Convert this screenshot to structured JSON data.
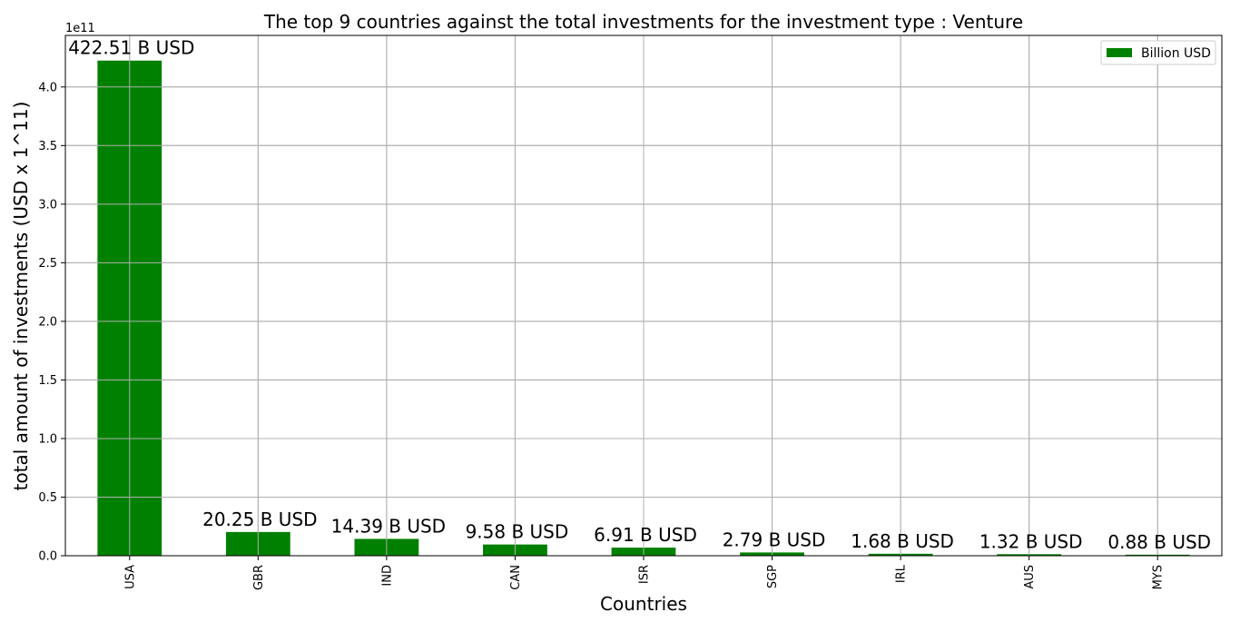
{
  "chart_data": {
    "type": "bar",
    "title": "The top 9 countries against the total investments for the investment type : Venture",
    "xlabel": "Countries",
    "ylabel": "total amount of investments (USD x 1^11)",
    "offset_text": "1e11",
    "categories": [
      "USA",
      "GBR",
      "IND",
      "CAN",
      "ISR",
      "SGP",
      "IRL",
      "AUS",
      "MYS"
    ],
    "series": [
      {
        "name": "Billion USD",
        "values": [
          422510000000.0,
          20250000000.0,
          14390000000.0,
          9580000000.0,
          6910000000.0,
          2790000000.0,
          1680000000.0,
          1320000000.0,
          880000000.0
        ],
        "data_labels": [
          "422.51 B USD",
          "20.25 B USD",
          "14.39 B USD",
          "9.58 B USD",
          "6.91 B USD",
          "2.79 B USD",
          "1.68 B USD",
          "1.32 B USD",
          "0.88 B USD"
        ]
      }
    ],
    "ylim": [
      0,
      444000000000.0
    ],
    "yticks": [
      0,
      0.5,
      1.0,
      1.5,
      2.0,
      2.5,
      3.0,
      3.5,
      4.0
    ],
    "ytick_labels": [
      "0.0",
      "0.5",
      "1.0",
      "1.5",
      "2.0",
      "2.5",
      "3.0",
      "3.5",
      "4.0"
    ],
    "ytick_scale": 100000000000.0,
    "grid": true,
    "legend_position": "top-right",
    "colors": {
      "bar": "#008000",
      "grid": "#b0b0b0",
      "axis": "#000000"
    }
  }
}
